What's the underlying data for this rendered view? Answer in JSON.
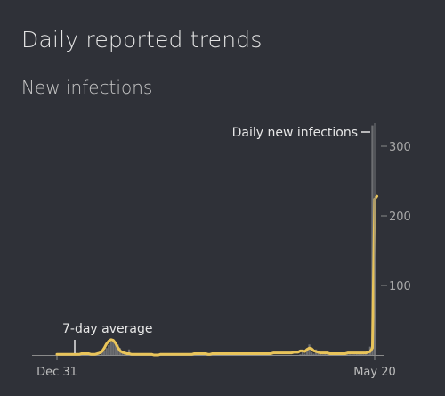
{
  "header": {
    "title": "Daily reported trends",
    "subtitle": "New infections"
  },
  "colors": {
    "background": "#2f3138",
    "avg_line": "#e9c45a",
    "daily_bars": "#6d6e72",
    "axis": "#8a8a8a",
    "text": "#d8d8d8"
  },
  "chart_data": {
    "type": "bar",
    "x_start_label": "Dec 31",
    "x_end_label": "May 20",
    "x_ticks": [
      "Dec 31",
      "May 20"
    ],
    "y_ticks": [
      100,
      200,
      300
    ],
    "ylim": [
      0,
      330
    ],
    "grid": false,
    "daily_label": "Daily new infections",
    "average_label": "7-day average",
    "series": [
      {
        "name": "Daily new infections",
        "values": [
          0,
          0,
          0,
          0,
          0,
          0,
          0,
          0,
          0,
          0,
          0,
          0,
          0,
          0,
          0,
          0,
          0,
          0,
          0,
          0,
          4,
          6,
          10,
          14,
          18,
          20,
          18,
          15,
          10,
          6,
          3,
          2,
          8,
          1,
          0,
          0,
          0,
          0,
          0,
          0,
          0,
          0,
          0,
          0,
          0,
          0,
          0,
          0,
          0,
          0,
          0,
          0,
          0,
          0,
          0,
          0,
          0,
          0,
          0,
          0,
          0,
          0,
          0,
          0,
          0,
          0,
          0,
          0,
          0,
          0,
          0,
          0,
          0,
          0,
          0,
          0,
          0,
          0,
          0,
          0,
          0,
          0,
          0,
          0,
          0,
          0,
          0,
          0,
          0,
          0,
          0,
          0,
          0,
          0,
          0,
          0,
          0,
          0,
          0,
          0,
          0,
          0,
          0,
          0,
          0,
          0,
          0,
          0,
          1,
          5,
          2,
          10,
          15,
          4,
          2,
          8,
          3,
          2,
          1,
          4,
          2,
          1,
          1,
          0,
          0,
          1,
          0,
          1,
          2,
          1,
          1,
          1,
          1,
          2,
          2,
          2,
          3,
          4,
          2,
          12,
          330,
          220
        ]
      },
      {
        "name": "7-day average",
        "values": [
          1,
          1,
          1,
          1,
          1,
          1,
          1,
          1,
          1,
          1,
          1,
          2,
          2,
          2,
          2,
          1,
          1,
          1,
          2,
          3,
          5,
          10,
          16,
          20,
          22,
          21,
          17,
          11,
          6,
          4,
          3,
          2,
          2,
          1,
          1,
          1,
          1,
          1,
          1,
          1,
          1,
          1,
          1,
          0,
          0,
          0,
          1,
          1,
          1,
          1,
          1,
          1,
          1,
          1,
          1,
          1,
          1,
          1,
          1,
          1,
          1,
          2,
          2,
          2,
          2,
          2,
          2,
          1,
          1,
          2,
          2,
          2,
          2,
          2,
          2,
          2,
          2,
          2,
          2,
          2,
          2,
          2,
          2,
          2,
          2,
          2,
          2,
          2,
          2,
          2,
          2,
          2,
          2,
          2,
          2,
          2,
          3,
          3,
          3,
          3,
          3,
          3,
          3,
          3,
          3,
          4,
          4,
          4,
          6,
          6,
          5,
          8,
          10,
          9,
          6,
          5,
          4,
          3,
          3,
          3,
          3,
          2,
          2,
          2,
          2,
          2,
          2,
          2,
          2,
          3,
          3,
          3,
          3,
          3,
          3,
          3,
          3,
          3,
          4,
          5,
          10,
          224,
          228
        ]
      }
    ]
  }
}
